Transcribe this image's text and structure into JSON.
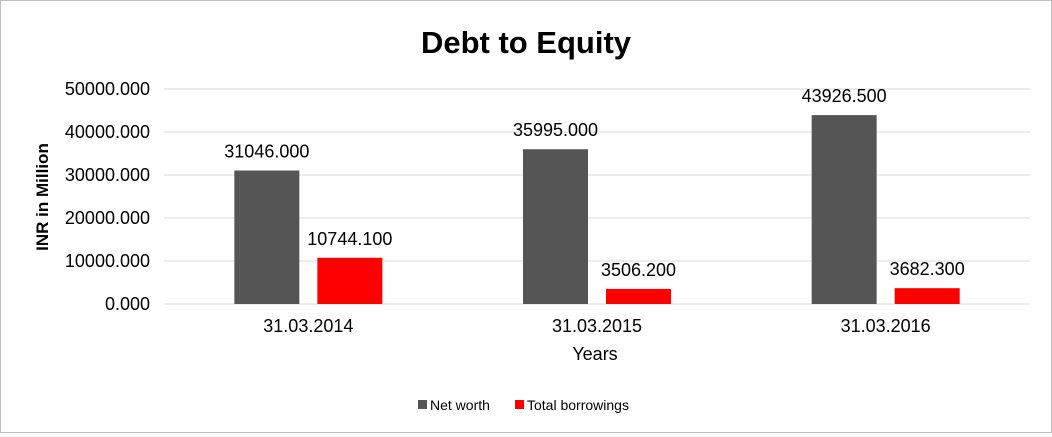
{
  "chart_data": {
    "type": "bar",
    "title": "Debt to Equity",
    "xlabel": "Years",
    "ylabel": "INR in Million",
    "categories": [
      "31.03.2014",
      "31.03.2015",
      "31.03.2016"
    ],
    "series": [
      {
        "name": "Net worth",
        "color": "#555555",
        "values": [
          31046.0,
          35995.0,
          43926.5
        ],
        "labels": [
          "31046.000",
          "35995.000",
          "43926.500"
        ]
      },
      {
        "name": "Total borrowings",
        "color": "#ff0000",
        "values": [
          10744.1,
          3506.2,
          3682.3
        ],
        "labels": [
          "10744.100",
          "3506.200",
          "3682.300"
        ]
      }
    ],
    "ylim": [
      0,
      50000
    ],
    "yticks": [
      0,
      10000,
      20000,
      30000,
      40000,
      50000
    ],
    "ytick_labels": [
      "0.000",
      "10000.000",
      "20000.000",
      "30000.000",
      "40000.000",
      "50000.000"
    ],
    "grid": true,
    "gridline_color": "#d9d9d9",
    "legend_position": "bottom"
  }
}
